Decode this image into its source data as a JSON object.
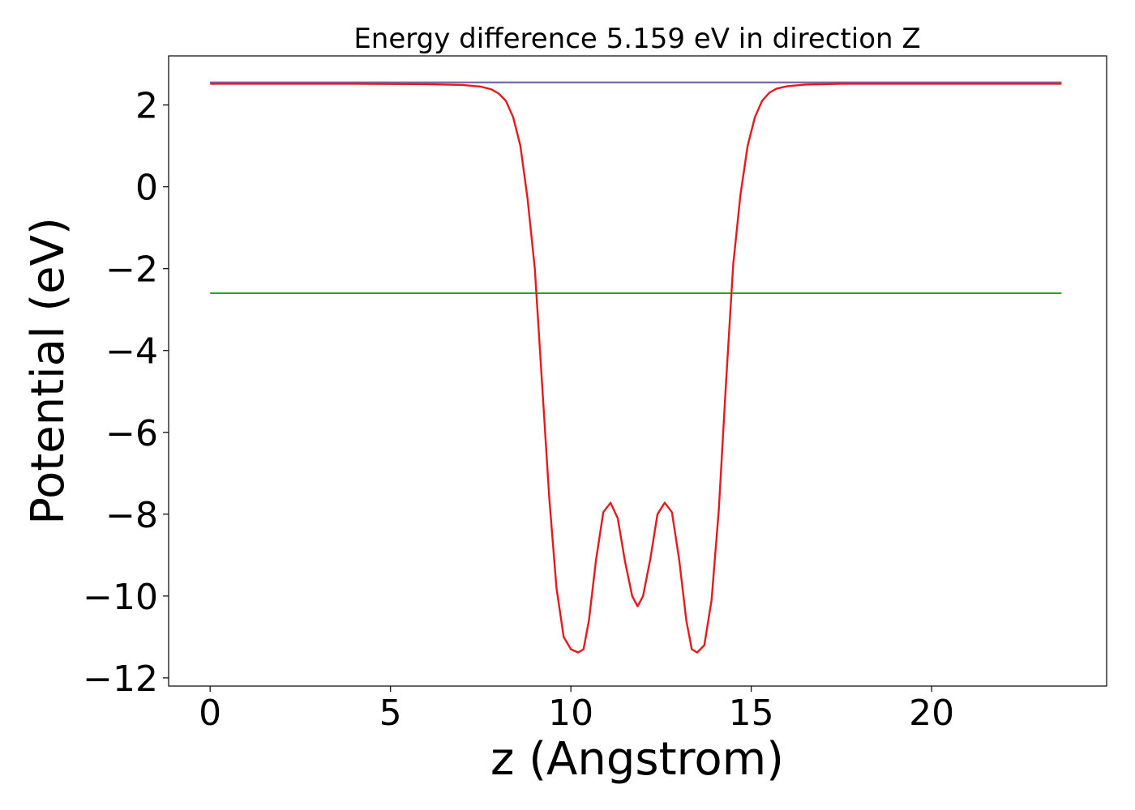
{
  "chart_data": {
    "type": "line",
    "title": "Energy difference 5.159 eV in direction Z",
    "xlabel": "z (Angstrom)",
    "ylabel": "Potential (eV)",
    "xlim": [
      -1.15,
      24.85
    ],
    "ylim": [
      -12.2,
      3.2
    ],
    "xticks": [
      0,
      5,
      10,
      15,
      20
    ],
    "yticks": [
      -12,
      -10,
      -8,
      -6,
      -4,
      -2,
      0,
      2
    ],
    "xtick_labels": [
      "0",
      "5",
      "10",
      "15",
      "20"
    ],
    "ytick_labels": [
      "−12",
      "−10",
      "−8",
      "−6",
      "−4",
      "−2",
      "0",
      "2"
    ],
    "grid": false,
    "legend": "none",
    "series": [
      {
        "color": "#1f77b4",
        "x": [
          0,
          23.6
        ],
        "y": [
          2.55,
          2.55
        ]
      },
      {
        "color": "#2ca02c",
        "x": [
          0,
          23.6
        ],
        "y": [
          -2.6,
          -2.6
        ]
      },
      {
        "color": "#8064a2",
        "x": [
          0,
          23.6
        ],
        "y": [
          2.55,
          2.55
        ]
      },
      {
        "color": "#e41a1c",
        "x": [
          0,
          2,
          4,
          6,
          7,
          7.5,
          7.8,
          8.0,
          8.2,
          8.4,
          8.6,
          8.8,
          9.0,
          9.2,
          9.4,
          9.6,
          9.8,
          10.0,
          10.2,
          10.35,
          10.5,
          10.7,
          10.9,
          11.1,
          11.3,
          11.5,
          11.7,
          11.85,
          12.0,
          12.2,
          12.4,
          12.6,
          12.8,
          13.0,
          13.2,
          13.35,
          13.5,
          13.7,
          13.9,
          14.1,
          14.3,
          14.5,
          14.7,
          14.9,
          15.1,
          15.3,
          15.5,
          15.7,
          16.0,
          16.5,
          17.5,
          19,
          21,
          23.6
        ],
        "y": [
          2.52,
          2.52,
          2.52,
          2.51,
          2.49,
          2.45,
          2.38,
          2.28,
          2.1,
          1.7,
          1.0,
          -0.3,
          -2.0,
          -4.8,
          -7.6,
          -9.8,
          -11.0,
          -11.3,
          -11.38,
          -11.3,
          -10.6,
          -9.1,
          -7.95,
          -7.72,
          -8.1,
          -9.15,
          -10.0,
          -10.25,
          -10.0,
          -9.1,
          -8.0,
          -7.72,
          -7.95,
          -9.1,
          -10.6,
          -11.3,
          -11.38,
          -11.2,
          -10.1,
          -7.9,
          -4.8,
          -1.9,
          -0.2,
          1.0,
          1.7,
          2.1,
          2.3,
          2.4,
          2.46,
          2.5,
          2.52,
          2.52,
          2.52,
          2.52
        ]
      }
    ]
  }
}
